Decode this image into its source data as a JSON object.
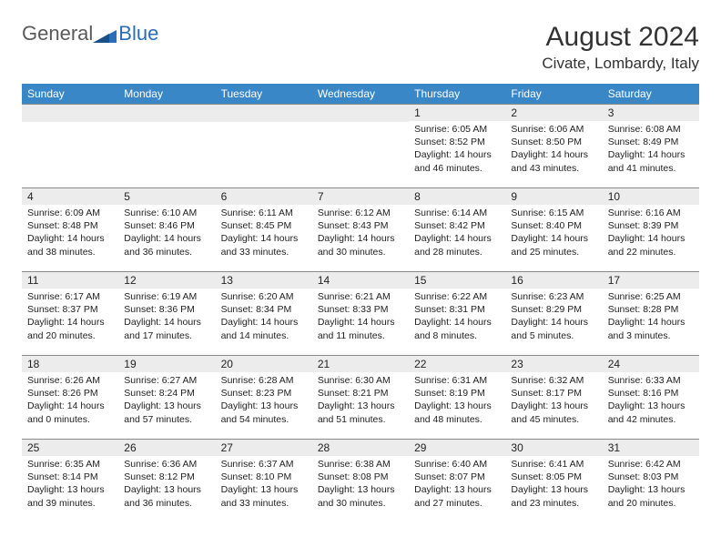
{
  "logo": {
    "general": "General",
    "blue": "Blue"
  },
  "title": "August 2024",
  "location": "Civate, Lombardy, Italy",
  "colors": {
    "header_bg": "#3a87c8",
    "header_text": "#ffffff",
    "daynum_bg": "#ececec",
    "border": "#8a8a8a",
    "logo_gray": "#5a5a5a",
    "logo_blue": "#2a6db8",
    "body_text": "#222222",
    "page_bg": "#ffffff"
  },
  "weekdays": [
    "Sunday",
    "Monday",
    "Tuesday",
    "Wednesday",
    "Thursday",
    "Friday",
    "Saturday"
  ],
  "weeks": [
    [
      null,
      null,
      null,
      null,
      {
        "n": "1",
        "sr": "6:05 AM",
        "ss": "8:52 PM",
        "dl": "14 hours and 46 minutes."
      },
      {
        "n": "2",
        "sr": "6:06 AM",
        "ss": "8:50 PM",
        "dl": "14 hours and 43 minutes."
      },
      {
        "n": "3",
        "sr": "6:08 AM",
        "ss": "8:49 PM",
        "dl": "14 hours and 41 minutes."
      }
    ],
    [
      {
        "n": "4",
        "sr": "6:09 AM",
        "ss": "8:48 PM",
        "dl": "14 hours and 38 minutes."
      },
      {
        "n": "5",
        "sr": "6:10 AM",
        "ss": "8:46 PM",
        "dl": "14 hours and 36 minutes."
      },
      {
        "n": "6",
        "sr": "6:11 AM",
        "ss": "8:45 PM",
        "dl": "14 hours and 33 minutes."
      },
      {
        "n": "7",
        "sr": "6:12 AM",
        "ss": "8:43 PM",
        "dl": "14 hours and 30 minutes."
      },
      {
        "n": "8",
        "sr": "6:14 AM",
        "ss": "8:42 PM",
        "dl": "14 hours and 28 minutes."
      },
      {
        "n": "9",
        "sr": "6:15 AM",
        "ss": "8:40 PM",
        "dl": "14 hours and 25 minutes."
      },
      {
        "n": "10",
        "sr": "6:16 AM",
        "ss": "8:39 PM",
        "dl": "14 hours and 22 minutes."
      }
    ],
    [
      {
        "n": "11",
        "sr": "6:17 AM",
        "ss": "8:37 PM",
        "dl": "14 hours and 20 minutes."
      },
      {
        "n": "12",
        "sr": "6:19 AM",
        "ss": "8:36 PM",
        "dl": "14 hours and 17 minutes."
      },
      {
        "n": "13",
        "sr": "6:20 AM",
        "ss": "8:34 PM",
        "dl": "14 hours and 14 minutes."
      },
      {
        "n": "14",
        "sr": "6:21 AM",
        "ss": "8:33 PM",
        "dl": "14 hours and 11 minutes."
      },
      {
        "n": "15",
        "sr": "6:22 AM",
        "ss": "8:31 PM",
        "dl": "14 hours and 8 minutes."
      },
      {
        "n": "16",
        "sr": "6:23 AM",
        "ss": "8:29 PM",
        "dl": "14 hours and 5 minutes."
      },
      {
        "n": "17",
        "sr": "6:25 AM",
        "ss": "8:28 PM",
        "dl": "14 hours and 3 minutes."
      }
    ],
    [
      {
        "n": "18",
        "sr": "6:26 AM",
        "ss": "8:26 PM",
        "dl": "14 hours and 0 minutes."
      },
      {
        "n": "19",
        "sr": "6:27 AM",
        "ss": "8:24 PM",
        "dl": "13 hours and 57 minutes."
      },
      {
        "n": "20",
        "sr": "6:28 AM",
        "ss": "8:23 PM",
        "dl": "13 hours and 54 minutes."
      },
      {
        "n": "21",
        "sr": "6:30 AM",
        "ss": "8:21 PM",
        "dl": "13 hours and 51 minutes."
      },
      {
        "n": "22",
        "sr": "6:31 AM",
        "ss": "8:19 PM",
        "dl": "13 hours and 48 minutes."
      },
      {
        "n": "23",
        "sr": "6:32 AM",
        "ss": "8:17 PM",
        "dl": "13 hours and 45 minutes."
      },
      {
        "n": "24",
        "sr": "6:33 AM",
        "ss": "8:16 PM",
        "dl": "13 hours and 42 minutes."
      }
    ],
    [
      {
        "n": "25",
        "sr": "6:35 AM",
        "ss": "8:14 PM",
        "dl": "13 hours and 39 minutes."
      },
      {
        "n": "26",
        "sr": "6:36 AM",
        "ss": "8:12 PM",
        "dl": "13 hours and 36 minutes."
      },
      {
        "n": "27",
        "sr": "6:37 AM",
        "ss": "8:10 PM",
        "dl": "13 hours and 33 minutes."
      },
      {
        "n": "28",
        "sr": "6:38 AM",
        "ss": "8:08 PM",
        "dl": "13 hours and 30 minutes."
      },
      {
        "n": "29",
        "sr": "6:40 AM",
        "ss": "8:07 PM",
        "dl": "13 hours and 27 minutes."
      },
      {
        "n": "30",
        "sr": "6:41 AM",
        "ss": "8:05 PM",
        "dl": "13 hours and 23 minutes."
      },
      {
        "n": "31",
        "sr": "6:42 AM",
        "ss": "8:03 PM",
        "dl": "13 hours and 20 minutes."
      }
    ]
  ],
  "labels": {
    "sunrise": "Sunrise:",
    "sunset": "Sunset:",
    "daylight": "Daylight:"
  }
}
